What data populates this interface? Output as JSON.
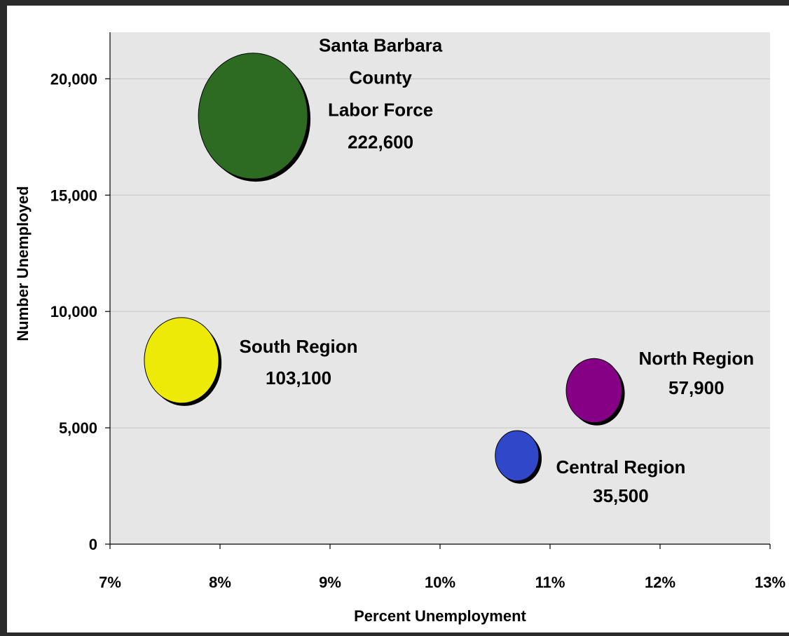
{
  "chart_data": {
    "type": "scatter",
    "subtype": "bubble",
    "title": "",
    "xlabel": "Percent Unemployment",
    "ylabel": "Number Unemployed",
    "xlim": [
      7,
      13
    ],
    "ylim": [
      0,
      22000
    ],
    "x_ticks": [
      {
        "value": 7,
        "label": "7%"
      },
      {
        "value": 8,
        "label": "8%"
      },
      {
        "value": 9,
        "label": "9%"
      },
      {
        "value": 10,
        "label": "10%"
      },
      {
        "value": 11,
        "label": "11%"
      },
      {
        "value": 12,
        "label": "12%"
      },
      {
        "value": 13,
        "label": "13%"
      }
    ],
    "y_ticks": [
      {
        "value": 0,
        "label": "0"
      },
      {
        "value": 5000,
        "label": "5,000"
      },
      {
        "value": 10000,
        "label": "10,000"
      },
      {
        "value": 15000,
        "label": "15,000"
      },
      {
        "value": 20000,
        "label": "20,000"
      }
    ],
    "grid": "horizontal",
    "plot_background": "#e6e6e6",
    "points": [
      {
        "id": "county",
        "x": 8.3,
        "y": 18400,
        "size": 222600,
        "color": "#2d6b22",
        "label_lines": [
          "Santa Barbara",
          "County",
          "Labor Force",
          "222,600"
        ]
      },
      {
        "id": "south",
        "x": 7.65,
        "y": 7900,
        "size": 103100,
        "color": "#eeea08",
        "label_lines": [
          "South Region",
          "103,100"
        ]
      },
      {
        "id": "north",
        "x": 11.4,
        "y": 6600,
        "size": 57900,
        "color": "#850085",
        "label_lines": [
          "North Region",
          "57,900"
        ]
      },
      {
        "id": "central",
        "x": 10.7,
        "y": 3800,
        "size": 35500,
        "color": "#2f47c8",
        "label_lines": [
          "Central Region",
          "35,500"
        ]
      }
    ]
  }
}
